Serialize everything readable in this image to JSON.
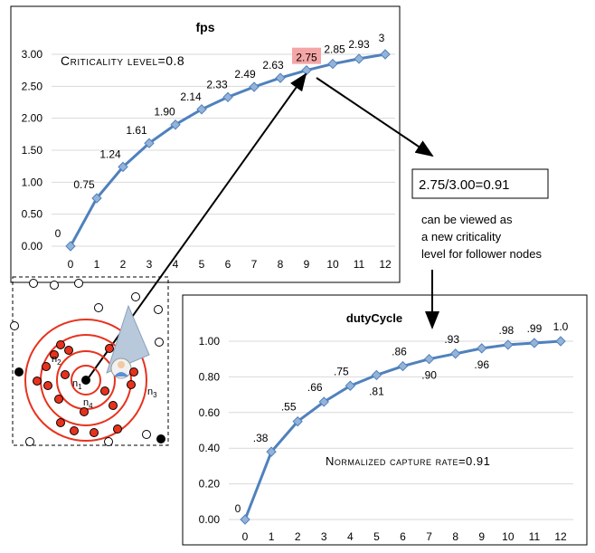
{
  "chart_data": [
    {
      "type": "line",
      "title": "fps",
      "annotation": "Criticality level=0.8",
      "x": [
        0,
        1,
        2,
        3,
        4,
        5,
        6,
        7,
        8,
        9,
        10,
        11,
        12
      ],
      "x_tick_labels": [
        "0",
        "1",
        "2",
        "3",
        "4",
        "5",
        "6",
        "7",
        "8",
        "9",
        "10",
        "11",
        "12"
      ],
      "values": [
        0,
        0.75,
        1.24,
        1.61,
        1.9,
        2.14,
        2.33,
        2.49,
        2.63,
        2.75,
        2.85,
        2.93,
        3
      ],
      "data_labels": [
        "0",
        "0.75",
        "1.24",
        "1.61",
        "1.90",
        "2.14",
        "2.33",
        "2.49",
        "2.63",
        "2.75",
        "2.85",
        "2.93",
        "3"
      ],
      "highlighted_point": "2.75",
      "y_tick_labels": [
        "0.00",
        "0.50",
        "1.00",
        "1.50",
        "2.00",
        "2.50",
        "3.00"
      ],
      "ylim": [
        0,
        3
      ],
      "grid": true,
      "colors": {
        "line": "#4f81bd",
        "marker": "#95b3d7",
        "highlight": "#f4a6a6"
      }
    },
    {
      "type": "line",
      "title": "dutyCycle",
      "annotation": "Normalized capture rate=0.91",
      "x": [
        0,
        1,
        2,
        3,
        4,
        5,
        6,
        7,
        8,
        9,
        10,
        11,
        12
      ],
      "x_tick_labels": [
        "0",
        "1",
        "2",
        "3",
        "4",
        "5",
        "6",
        "7",
        "8",
        "9",
        "10",
        "11",
        "12"
      ],
      "values": [
        0,
        0.38,
        0.55,
        0.66,
        0.75,
        0.81,
        0.86,
        0.9,
        0.93,
        0.96,
        0.98,
        0.99,
        1.0
      ],
      "data_labels": [
        "0",
        ".38",
        ".55",
        ".66",
        ".75",
        ".81",
        ".86",
        ".90",
        ".93",
        ".96",
        ".98",
        ".99",
        "1.0"
      ],
      "y_tick_labels": [
        "0.00",
        "0.20",
        "0.40",
        "0.60",
        "0.80",
        "1.00"
      ],
      "ylim": [
        0,
        1
      ],
      "grid": true,
      "colors": {
        "line": "#4f81bd",
        "marker": "#95b3d7"
      }
    }
  ],
  "ratio_box": "2.75/3.00=0.91",
  "explanation": "can be viewed as a new criticality level for follower nodes",
  "network_labels": {
    "n1": "n",
    "n1_sub": "1",
    "n2": "n",
    "n2_sub": "2",
    "n3": "n",
    "n3_sub": "3",
    "n4": "n",
    "n4_sub": "4"
  },
  "colors": {
    "ring": "#e8321e",
    "node_red": "#e8321e",
    "node_black": "#000000",
    "node_white": "#ffffff",
    "camera_fov": "#b9c9dc"
  }
}
